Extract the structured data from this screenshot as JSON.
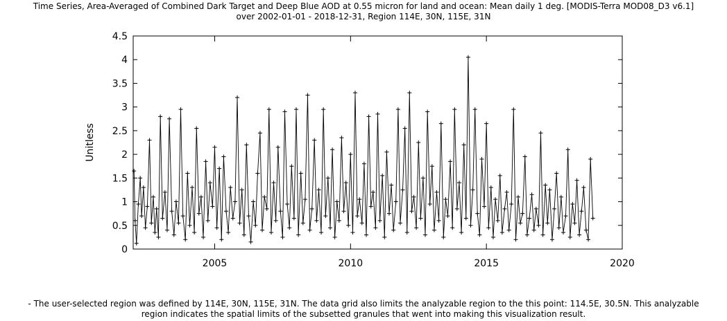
{
  "title": {
    "line1": "Time Series, Area-Averaged of Combined Dark Target and Deep Blue AOD at 0.55 micron for land and ocean: Mean daily 1 deg. [MODIS-Terra MOD08_D3 v6.1]",
    "line2": "over 2002-01-01 - 2018-12-31, Region 114E, 30N, 115E, 31N"
  },
  "caveat": {
    "line1": "- The user-selected region was defined by 114E, 30N, 115E, 31N. The data grid also limits the analyzable region to the this point: 114.5E, 30.5N. This analyzable",
    "line2": "region indicates the spatial limits of the subsetted granules that went into making this visualization result."
  },
  "chart_data": {
    "type": "line",
    "title": "Time Series, Area-Averaged of Combined Dark Target and Deep Blue AOD at 0.55 micron for land and ocean: Mean daily 1 deg. [MODIS-Terra MOD08_D3 v6.1] over 2002-01-01 - 2018-12-31, Region 114E, 30N, 115E, 31N",
    "xlabel": "",
    "ylabel": "Unitless",
    "xlim": [
      2002.0,
      2020.0
    ],
    "ylim": [
      0,
      4.5
    ],
    "xticks": [
      "2005",
      "2010",
      "2015",
      "2020"
    ],
    "yticks": [
      "0",
      "0.5",
      "1",
      "1.5",
      "2",
      "2.5",
      "3",
      "3.5",
      "4",
      "4.5"
    ],
    "grid": false,
    "marker": "+",
    "series": [
      {
        "x": [
          2002.03,
          2002.07,
          2002.12,
          2002.19,
          2002.26,
          2002.31,
          2002.38,
          2002.45,
          2002.52,
          2002.6,
          2002.67,
          2002.74,
          2002.8,
          2002.86,
          2002.93,
          2003.0,
          2003.08,
          2003.17,
          2003.25,
          2003.33,
          2003.42,
          2003.5,
          2003.58,
          2003.67,
          2003.75,
          2003.83,
          2003.92,
          2004.0,
          2004.08,
          2004.17,
          2004.25,
          2004.33,
          2004.42,
          2004.5,
          2004.58,
          2004.67,
          2004.75,
          2004.83,
          2004.92,
          2005.0,
          2005.08,
          2005.17,
          2005.25,
          2005.33,
          2005.42,
          2005.5,
          2005.58,
          2005.67,
          2005.75,
          2005.83,
          2005.92,
          2006.0,
          2006.08,
          2006.17,
          2006.25,
          2006.33,
          2006.42,
          2006.5,
          2006.58,
          2006.67,
          2006.75,
          2006.83,
          2006.92,
          2007.0,
          2007.08,
          2007.17,
          2007.25,
          2007.33,
          2007.42,
          2007.5,
          2007.58,
          2007.67,
          2007.75,
          2007.83,
          2007.92,
          2008.0,
          2008.08,
          2008.17,
          2008.25,
          2008.33,
          2008.42,
          2008.5,
          2008.58,
          2008.67,
          2008.75,
          2008.83,
          2008.92,
          2009.0,
          2009.08,
          2009.17,
          2009.25,
          2009.33,
          2009.42,
          2009.5,
          2009.58,
          2009.67,
          2009.75,
          2009.83,
          2009.92,
          2010.0,
          2010.08,
          2010.17,
          2010.25,
          2010.33,
          2010.42,
          2010.5,
          2010.58,
          2010.67,
          2010.75,
          2010.83,
          2010.92,
          2011.0,
          2011.08,
          2011.17,
          2011.25,
          2011.33,
          2011.42,
          2011.5,
          2011.58,
          2011.67,
          2011.75,
          2011.83,
          2011.92,
          2012.0,
          2012.08,
          2012.17,
          2012.25,
          2012.33,
          2012.42,
          2012.5,
          2012.58,
          2012.67,
          2012.75,
          2012.83,
          2012.92,
          2013.0,
          2013.08,
          2013.17,
          2013.25,
          2013.33,
          2013.42,
          2013.5,
          2013.58,
          2013.67,
          2013.75,
          2013.83,
          2013.92,
          2014.0,
          2014.08,
          2014.17,
          2014.25,
          2014.33,
          2014.42,
          2014.5,
          2014.58,
          2014.67,
          2014.75,
          2014.83,
          2014.92,
          2015.0,
          2015.08,
          2015.17,
          2015.25,
          2015.33,
          2015.42,
          2015.5,
          2015.58,
          2015.67,
          2015.75,
          2015.83,
          2015.92,
          2016.0,
          2016.08,
          2016.17,
          2016.25,
          2016.33,
          2016.42,
          2016.5,
          2016.58,
          2016.67,
          2016.75,
          2016.83,
          2016.92,
          2017.0,
          2017.08,
          2017.17,
          2017.25,
          2017.33,
          2017.42,
          2017.5,
          2017.58,
          2017.67,
          2017.75,
          2017.83,
          2017.92,
          2018.0,
          2018.08,
          2018.17,
          2018.25,
          2018.33,
          2018.42,
          2018.5,
          2018.58,
          2018.67,
          2018.75,
          2018.83,
          2018.92
        ],
        "y": [
          1.65,
          0.6,
          0.12,
          0.95,
          1.5,
          0.7,
          1.3,
          0.45,
          0.9,
          2.3,
          0.55,
          1.1,
          0.35,
          0.85,
          0.25,
          2.8,
          0.65,
          1.2,
          0.4,
          2.75,
          0.8,
          0.3,
          1.0,
          0.55,
          2.95,
          0.7,
          0.2,
          1.6,
          0.5,
          1.3,
          0.35,
          2.55,
          0.75,
          1.1,
          0.25,
          1.85,
          0.6,
          1.4,
          0.9,
          2.15,
          0.45,
          1.7,
          0.2,
          1.95,
          0.8,
          0.35,
          1.3,
          0.65,
          1.0,
          3.2,
          0.55,
          1.25,
          0.3,
          2.2,
          0.7,
          0.15,
          1.0,
          0.5,
          1.6,
          2.45,
          0.4,
          1.1,
          0.85,
          2.95,
          0.35,
          1.4,
          0.6,
          2.15,
          0.8,
          0.25,
          2.9,
          0.95,
          0.45,
          1.75,
          0.65,
          2.95,
          0.3,
          1.6,
          0.55,
          1.05,
          3.25,
          0.4,
          0.85,
          2.3,
          0.6,
          1.25,
          0.35,
          2.95,
          0.7,
          1.5,
          0.45,
          2.1,
          0.25,
          1.0,
          0.6,
          2.35,
          0.8,
          1.4,
          0.5,
          2.0,
          0.35,
          3.3,
          0.7,
          1.05,
          0.55,
          1.8,
          0.3,
          2.8,
          0.9,
          1.2,
          0.45,
          2.85,
          0.6,
          1.55,
          0.25,
          2.05,
          0.75,
          1.35,
          0.4,
          1.0,
          2.95,
          0.55,
          1.25,
          2.55,
          0.35,
          3.3,
          0.8,
          1.1,
          0.45,
          2.25,
          0.65,
          1.5,
          0.3,
          2.9,
          0.95,
          1.75,
          0.4,
          1.2,
          0.6,
          2.65,
          0.25,
          1.05,
          0.7,
          1.85,
          0.45,
          2.95,
          0.85,
          1.4,
          0.35,
          2.2,
          0.65,
          4.05,
          0.5,
          1.25,
          2.95,
          0.75,
          0.3,
          1.9,
          0.9,
          2.65,
          0.45,
          1.3,
          0.25,
          1.05,
          0.6,
          1.55,
          0.35,
          0.85,
          1.2,
          0.4,
          0.95,
          2.95,
          0.2,
          1.1,
          0.55,
          0.75,
          1.95,
          0.3,
          0.65,
          1.15,
          0.4,
          0.85,
          0.5,
          2.45,
          0.3,
          1.35,
          0.55,
          1.25,
          0.2,
          0.85,
          1.6,
          0.45,
          1.1,
          0.35,
          0.7,
          2.1,
          0.25,
          0.95,
          0.55,
          1.45,
          0.3,
          0.8,
          1.3,
          0.4,
          0.2,
          1.9,
          0.65
        ]
      }
    ]
  }
}
